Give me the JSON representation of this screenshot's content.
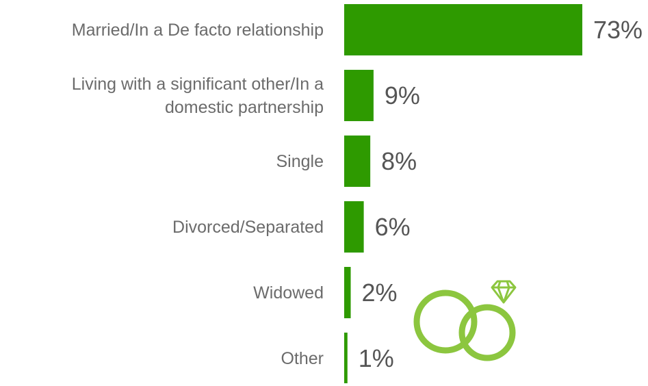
{
  "chart_data": {
    "type": "bar",
    "orientation": "horizontal",
    "categories": [
      "Married/In a De facto relationship",
      "Living with a significant other/In a domestic partnership",
      "Single",
      "Divorced/Separated",
      "Widowed",
      "Other"
    ],
    "values": [
      73,
      9,
      8,
      6,
      2,
      1
    ],
    "value_labels": [
      "73%",
      "9%",
      "8%",
      "6%",
      "2%",
      "1%"
    ],
    "color": "#2e9a00"
  }
}
